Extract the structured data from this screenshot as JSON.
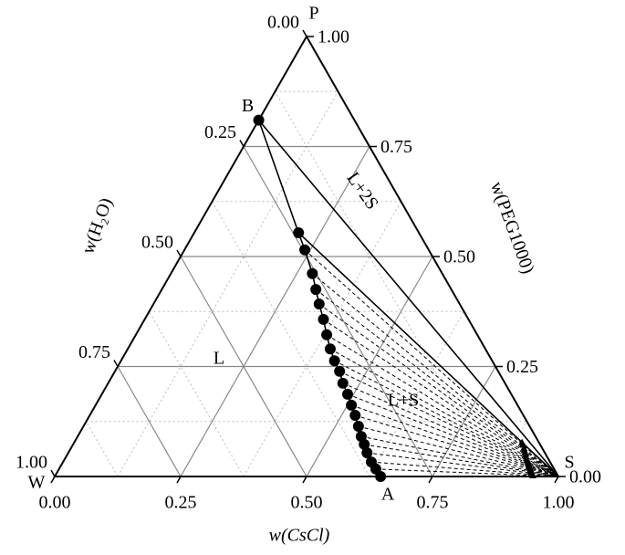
{
  "chart_data": {
    "type": "ternary",
    "vertices": {
      "W": "W",
      "S": "S",
      "P": "P"
    },
    "axes": {
      "bottom": {
        "title": "w(CsCl)",
        "ticks": [
          {
            "value": 0,
            "label": "0.00"
          },
          {
            "value": 0.25,
            "label": "0.25"
          },
          {
            "value": 0.5,
            "label": "0.50"
          },
          {
            "value": 0.75,
            "label": "0.75"
          },
          {
            "value": 1,
            "label": "1.00"
          }
        ]
      },
      "right": {
        "title": "w(PEG1000)",
        "ticks": [
          {
            "value": 0,
            "label": "0.00"
          },
          {
            "value": 0.25,
            "label": "0.25"
          },
          {
            "value": 0.5,
            "label": "0.50"
          },
          {
            "value": 0.75,
            "label": "0.75"
          },
          {
            "value": 1,
            "label": "1.00"
          }
        ]
      },
      "left": {
        "title": "w(H₂O)",
        "ticks": [
          {
            "value": 0,
            "label": "0.00"
          },
          {
            "value": 0.25,
            "label": "0.25"
          },
          {
            "value": 0.5,
            "label": "0.50"
          },
          {
            "value": 0.75,
            "label": "0.75"
          },
          {
            "value": 1,
            "label": "1.00"
          }
        ]
      }
    },
    "grid": true,
    "points": [
      {
        "name": "B",
        "cscl": 0,
        "peg1000": 0.81
      },
      {
        "name": "A",
        "cscl": 0.647,
        "peg1000": 0
      }
    ],
    "curve": {
      "cscl": [
        0.207,
        0.239,
        0.281,
        0.306,
        0.329,
        0.355,
        0.379,
        0.402,
        0.424,
        0.446,
        0.466,
        0.488,
        0.508,
        0.527,
        0.546,
        0.563,
        0.578,
        0.593,
        0.612,
        0.629
      ],
      "peg1000": [
        0.554,
        0.515,
        0.461,
        0.425,
        0.392,
        0.357,
        0.322,
        0.29,
        0.263,
        0.239,
        0.212,
        0.187,
        0.162,
        0.139,
        0.114,
        0.091,
        0.073,
        0.054,
        0.033,
        0.017
      ]
    },
    "tie_lines": true,
    "regions": [
      "L",
      "L+S",
      "L+2S"
    ]
  }
}
